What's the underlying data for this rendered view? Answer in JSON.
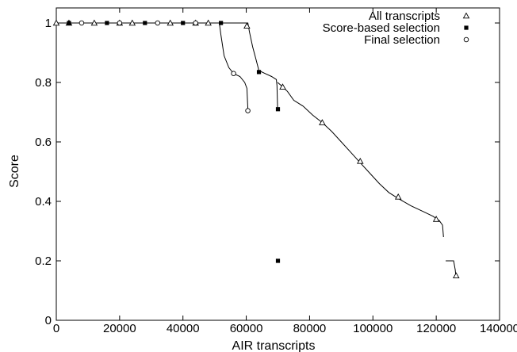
{
  "chart_data": {
    "type": "scatter",
    "xlabel": "AIR transcripts",
    "ylabel": "Score",
    "xlim": [
      0,
      140000
    ],
    "ylim": [
      0,
      1.05
    ],
    "x_ticks": [
      0,
      20000,
      40000,
      60000,
      80000,
      100000,
      120000,
      140000
    ],
    "y_ticks": [
      0,
      0.2,
      0.4,
      0.6,
      0.8,
      1
    ],
    "x_tick_labels": [
      "0",
      "20000",
      "40000",
      "60000",
      "80000",
      "100000",
      "120000",
      "140000"
    ],
    "y_tick_labels": [
      "0",
      "0.2",
      "0.4",
      "0.6",
      "0.8",
      "1"
    ],
    "grid": false,
    "legend_position": "top-right",
    "curves": [
      {
        "points": [
          [
            0,
            1.0
          ],
          [
            51500,
            1.0
          ],
          [
            52000,
            0.96
          ],
          [
            53000,
            0.89
          ],
          [
            54500,
            0.85
          ],
          [
            56000,
            0.83
          ],
          [
            58000,
            0.82
          ],
          [
            59500,
            0.8
          ],
          [
            60200,
            0.78
          ],
          [
            60500,
            0.71
          ]
        ]
      },
      {
        "points": [
          [
            51500,
            1.0
          ],
          [
            60500,
            1.0
          ],
          [
            61000,
            0.97
          ],
          [
            62000,
            0.92
          ],
          [
            63000,
            0.88
          ],
          [
            64000,
            0.84
          ],
          [
            66000,
            0.83
          ],
          [
            68000,
            0.82
          ],
          [
            69500,
            0.81
          ],
          [
            69700,
            0.79
          ],
          [
            69900,
            0.71
          ]
        ]
      },
      {
        "points": [
          [
            69900,
            0.8
          ],
          [
            71000,
            0.79
          ],
          [
            73000,
            0.77
          ],
          [
            75000,
            0.74
          ],
          [
            78000,
            0.72
          ],
          [
            81000,
            0.69
          ],
          [
            84000,
            0.665
          ],
          [
            87000,
            0.635
          ],
          [
            90000,
            0.6
          ],
          [
            93000,
            0.565
          ],
          [
            96000,
            0.53
          ],
          [
            99000,
            0.495
          ],
          [
            102000,
            0.46
          ],
          [
            105000,
            0.43
          ],
          [
            108000,
            0.41
          ],
          [
            112000,
            0.385
          ],
          [
            116000,
            0.365
          ],
          [
            119000,
            0.35
          ],
          [
            121000,
            0.335
          ],
          [
            122000,
            0.32
          ],
          [
            122300,
            0.28
          ]
        ]
      },
      {
        "points": [
          [
            123000,
            0.2
          ],
          [
            125500,
            0.2
          ],
          [
            126000,
            0.17
          ],
          [
            126200,
            0.15
          ]
        ]
      }
    ],
    "series": [
      {
        "name": "All transcripts",
        "marker": "triangle",
        "color": "#000000",
        "points": [
          [
            0,
            1.0
          ],
          [
            4000,
            1.0
          ],
          [
            12000,
            1.0
          ],
          [
            20000,
            1.0
          ],
          [
            24000,
            1.0
          ],
          [
            36000,
            1.0
          ],
          [
            44000,
            1.0
          ],
          [
            48000,
            1.0
          ],
          [
            60200,
            0.99
          ],
          [
            71500,
            0.785
          ],
          [
            84000,
            0.665
          ],
          [
            96000,
            0.535
          ],
          [
            108000,
            0.415
          ],
          [
            120000,
            0.34
          ],
          [
            126300,
            0.15
          ]
        ]
      },
      {
        "name": "Score-based selection",
        "marker": "square",
        "color": "#000000",
        "points": [
          [
            4000,
            1.0
          ],
          [
            16000,
            1.0
          ],
          [
            28000,
            1.0
          ],
          [
            40000,
            1.0
          ],
          [
            52000,
            1.0
          ],
          [
            64000,
            0.835
          ],
          [
            70000,
            0.71
          ],
          [
            70000,
            0.2
          ]
        ]
      },
      {
        "name": "Final selection",
        "marker": "circle",
        "color": "#000000",
        "points": [
          [
            8000,
            1.0
          ],
          [
            20000,
            1.0
          ],
          [
            32000,
            1.0
          ],
          [
            44000,
            1.0
          ],
          [
            56000,
            0.83
          ],
          [
            60500,
            0.705
          ]
        ]
      }
    ]
  }
}
